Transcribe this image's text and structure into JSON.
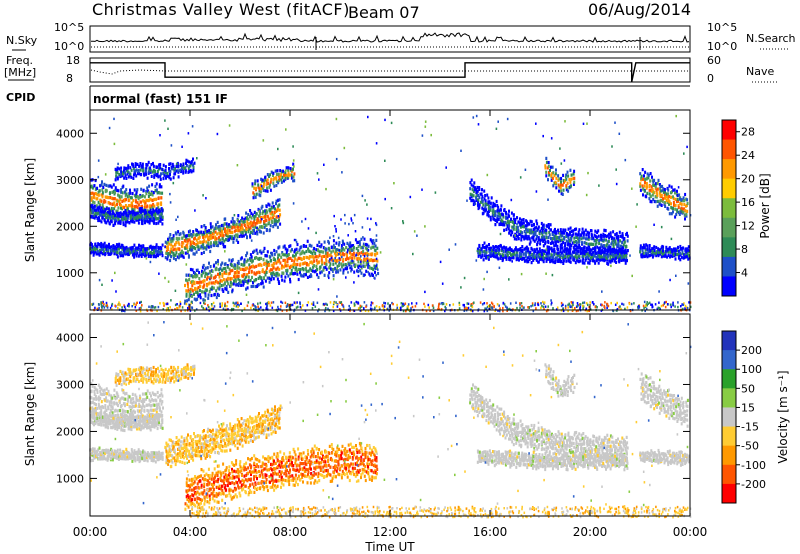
{
  "header": {
    "title": "Christmas Valley West (fitACF)",
    "beam": "Beam 07",
    "date": "06/Aug/2014"
  },
  "labels": {
    "nsky": "N.Sky",
    "nsearch": "N.Search",
    "freq_line1": "Freq.",
    "freq_line2": "[MHz]",
    "nave": "Nave",
    "cpid": "CPID",
    "cpid_value": "normal (fast) 151 IF",
    "nsky_ticks": [
      "10^5",
      "10^0"
    ],
    "nsearch_ticks": [
      "10^5",
      "10^0"
    ],
    "freq_ticks": [
      "18",
      "8"
    ],
    "nave_ticks": [
      "60",
      "0"
    ]
  },
  "colors": {
    "power_scale": [
      "#0000ff",
      "#1e50c8",
      "#2e8b57",
      "#5aa05a",
      "#7cbc3c",
      "#ffcc00",
      "#ff9900",
      "#ff5500",
      "#ff0000"
    ],
    "velocity_scale": [
      "#2233bb",
      "#3366cc",
      "#2aa12a",
      "#88cc44",
      "#c8c8c8",
      "#ffcc33",
      "#ff9900",
      "#ff5500",
      "#ff0000"
    ]
  },
  "chart_data": [
    {
      "type": "line",
      "title": "N.Sky / N.Search",
      "x_range": [
        "00:00",
        "24:00"
      ],
      "ylim_left": [
        "10^0",
        "10^5"
      ],
      "ylim_right": [
        "10^0",
        "10^5"
      ]
    },
    {
      "type": "line",
      "title": "Freq. / Nave",
      "x_range": [
        "00:00",
        "24:00"
      ],
      "ylim_left": [
        8,
        18
      ],
      "ylim_right": [
        0,
        60
      ],
      "freq_segments": [
        {
          "start": "00:00",
          "end": "03:00",
          "value": 16
        },
        {
          "start": "03:00",
          "end": "15:00",
          "value": 10
        },
        {
          "start": "15:00",
          "end": "21:40",
          "value": 16
        },
        {
          "start": "21:50",
          "end": "24:00",
          "value": 16
        }
      ]
    },
    {
      "type": "heatmap",
      "ylabel": "Slant Range [km]",
      "yticks": [
        "1000",
        "2000",
        "3000",
        "4000"
      ],
      "ylim": [
        200,
        4500
      ],
      "colorbar": {
        "label": "Power [dB]",
        "ticks": [
          "4",
          "8",
          "12",
          "16",
          "20",
          "24",
          "28"
        ],
        "range": [
          0,
          30
        ]
      }
    },
    {
      "type": "heatmap",
      "ylabel": "Slant Range [km]",
      "xlabel": "Time UT",
      "xticks": [
        "00:00",
        "04:00",
        "08:00",
        "12:00",
        "16:00",
        "20:00",
        "00:00"
      ],
      "yticks": [
        "1000",
        "2000",
        "3000",
        "4000"
      ],
      "ylim": [
        200,
        4500
      ],
      "colorbar": {
        "label": "Velocity [m s⁻¹]",
        "ticks": [
          "200",
          "100",
          "50",
          "15",
          "-15",
          "-50",
          "-100",
          "-200"
        ]
      }
    }
  ]
}
